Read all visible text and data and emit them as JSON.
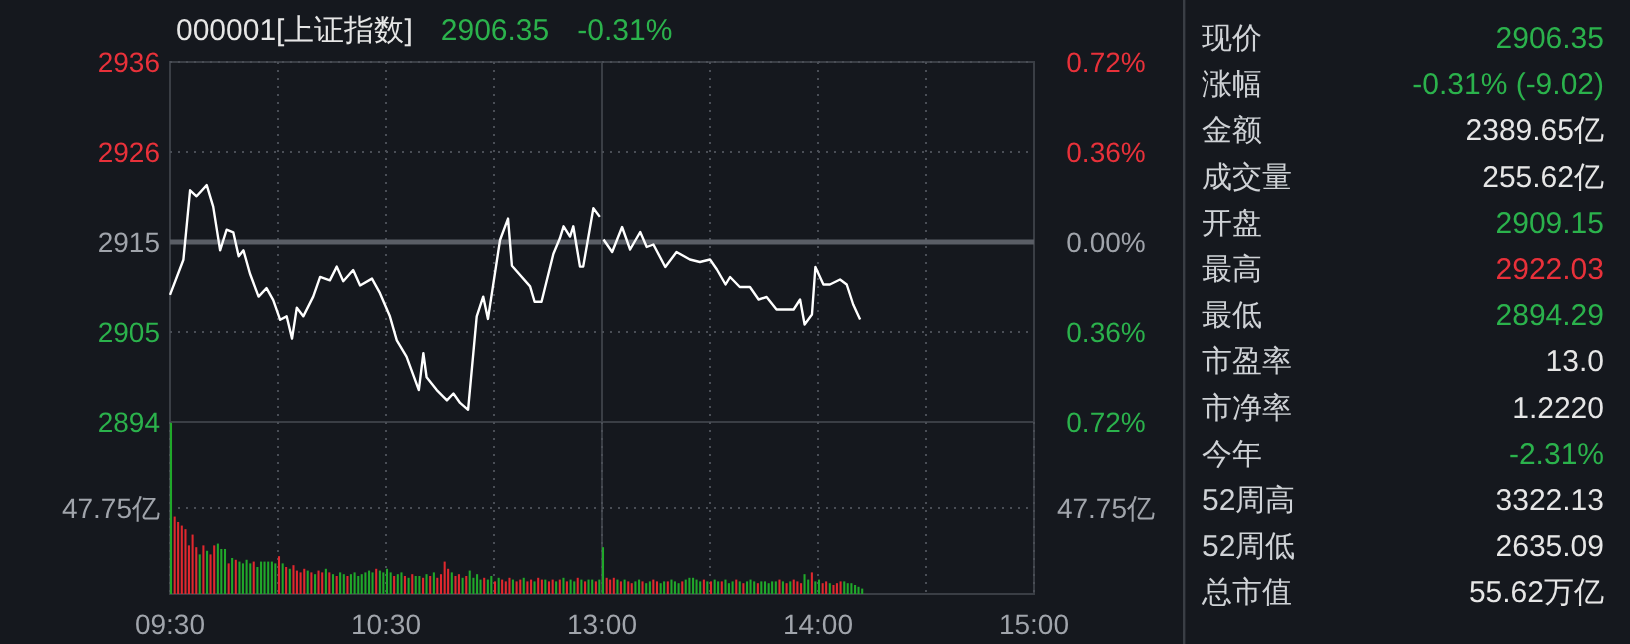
{
  "chart_data": [
    {
      "type": "line",
      "title": "000001[上证指数]",
      "annotations": [
        "2906.35",
        "-0.31%"
      ],
      "x": [
        9.5,
        9.562,
        9.593,
        9.623,
        9.67,
        9.7,
        9.732,
        9.762,
        9.793,
        9.818,
        9.84,
        9.87,
        9.91,
        9.947,
        9.978,
        10.01,
        10.04,
        10.065,
        10.087,
        10.117,
        10.163,
        10.195,
        10.24,
        10.272,
        10.302,
        10.348,
        10.38,
        10.435,
        10.472,
        10.518,
        10.55,
        10.595,
        10.652,
        10.673,
        10.688,
        10.735,
        10.782,
        10.812,
        10.843,
        10.88,
        10.92,
        10.95,
        10.972,
        11.028,
        11.065,
        11.083,
        11.167,
        11.188,
        11.22,
        11.275,
        11.305,
        11.322,
        11.352,
        11.367,
        11.398,
        11.413,
        11.46,
        11.49
      ],
      "series": [
        {
          "color": "#ffffff",
          "values": [
            2909.2,
            2913.3,
            2921.4,
            2920.7,
            2922.0,
            2919.5,
            2914.4,
            2916.8,
            2916.5,
            2913.7,
            2914.4,
            2911.7,
            2909.0,
            2910.0,
            2908.6,
            2906.3,
            2906.7,
            2904.1,
            2907.7,
            2906.7,
            2909.0,
            2911.3,
            2910.9,
            2912.5,
            2910.8,
            2912.1,
            2910.3,
            2911.1,
            2909.4,
            2906.7,
            2903.9,
            2902.0,
            2898.1,
            2902.4,
            2899.6,
            2898.1,
            2896.9,
            2897.7,
            2896.6,
            2895.8,
            2906.7,
            2909.0,
            2906.4,
            2915.6,
            2918.1,
            2912.6,
            2910.2,
            2908.4,
            2908.4,
            2914.0,
            2915.8,
            2917.2,
            2916.0,
            2917.2,
            2912.5,
            2912.5,
            2919.3,
            2918.3
          ]
        }
      ],
      "xlim": [
        9.5,
        11.5
      ],
      "xticks": [
        {
          "value": 10,
          "label": null
        },
        {
          "value": 10.5,
          "label": null
        },
        {
          "value": 11,
          "label": null
        }
      ],
      "ylim": [
        2894.38,
        2936.36
      ],
      "yticks": [
        {
          "value": 2894.38,
          "label": "2894"
        },
        {
          "value": 2904.88,
          "label": "2905"
        },
        {
          "value": 2915.37,
          "label": "2915"
        },
        {
          "value": 2925.87,
          "label": "2926"
        },
        {
          "value": 2936.36,
          "label": "2936"
        }
      ],
      "ref_lines": [
        {
          "axis": "y",
          "value": 2915.37
        }
      ],
      "grid": true,
      "tick_labels": "y",
      "marker": "none"
    },
    {
      "type": "line",
      "x": [
        13.007,
        13.047,
        13.093,
        13.13,
        13.177,
        13.207,
        13.238,
        13.293,
        13.345,
        13.407,
        13.453,
        13.5,
        13.532,
        13.572,
        13.593,
        13.638,
        13.685,
        13.725,
        13.762,
        13.808,
        13.887,
        13.917,
        13.938,
        13.972,
        13.988,
        14.025,
        14.055,
        14.102,
        14.133,
        14.163,
        14.195
      ],
      "series": [
        {
          "color": "#ffffff",
          "axis": "y2",
          "values": [
            0.01,
            -0.04,
            0.06,
            -0.03,
            0.04,
            -0.02,
            -0.01,
            -0.1,
            -0.04,
            -0.07,
            -0.08,
            -0.07,
            -0.11,
            -0.17,
            -0.14,
            -0.18,
            -0.18,
            -0.23,
            -0.22,
            -0.27,
            -0.27,
            -0.23,
            -0.33,
            -0.29,
            -0.1,
            -0.17,
            -0.17,
            -0.15,
            -0.17,
            -0.25,
            -0.31
          ]
        }
      ],
      "xlim": [
        13,
        15
      ],
      "xticks": [
        {
          "value": 13.5,
          "label": null
        },
        {
          "value": 14,
          "label": null
        },
        {
          "value": 14.5,
          "label": null
        }
      ],
      "y2lim": [
        -0.72,
        0.72
      ],
      "y2ticks": [
        {
          "value": -0.72,
          "label": "0.72%"
        },
        {
          "value": -0.36,
          "label": "0.36%"
        },
        {
          "value": 0,
          "label": "0.00%"
        },
        {
          "value": 0.36,
          "label": "0.36%"
        },
        {
          "value": 0.72,
          "label": "0.72%"
        }
      ],
      "ref_lines": [
        {
          "axis": "y2",
          "value": 0
        }
      ],
      "grid": true,
      "tick_labels": "y",
      "marker": "none"
    },
    {
      "type": "bar",
      "x": [
        9.5,
        9.517,
        9.533,
        9.55,
        9.567,
        9.583,
        9.6,
        9.617,
        9.633,
        9.65,
        9.667,
        9.683,
        9.7,
        9.717,
        9.733,
        9.75,
        9.767,
        9.783,
        9.8,
        9.817,
        9.833,
        9.85,
        9.867,
        9.883,
        9.9,
        9.917,
        9.933,
        9.95,
        9.967,
        9.983,
        10,
        10.017,
        10.033,
        10.05,
        10.067,
        10.083,
        10.1,
        10.117,
        10.133,
        10.15,
        10.167,
        10.183,
        10.2,
        10.217,
        10.233,
        10.25,
        10.267,
        10.283,
        10.3,
        10.317,
        10.333,
        10.35,
        10.367,
        10.383,
        10.4,
        10.417,
        10.433,
        10.45,
        10.467,
        10.483,
        10.5,
        10.517,
        10.533,
        10.55,
        10.567,
        10.583,
        10.6,
        10.617,
        10.633,
        10.65,
        10.667,
        10.683,
        10.7,
        10.717,
        10.733,
        10.75,
        10.767,
        10.783,
        10.8,
        10.817,
        10.833,
        10.85,
        10.867,
        10.883,
        10.9,
        10.917,
        10.933,
        10.95,
        10.967,
        10.983,
        11,
        11.017,
        11.033,
        11.05,
        11.067,
        11.083,
        11.1,
        11.117,
        11.133,
        11.15,
        11.167,
        11.183,
        11.2,
        11.217,
        11.233,
        11.25,
        11.267,
        11.283,
        11.3,
        11.317,
        11.333,
        11.35,
        11.367,
        11.383,
        11.4,
        11.417,
        11.433,
        11.45,
        11.467,
        11.483
      ],
      "values": [
        95,
        43,
        40,
        38,
        36,
        27,
        33,
        26,
        22,
        27,
        24,
        22,
        27,
        28,
        25,
        25,
        17,
        20,
        19,
        18,
        17,
        19,
        17,
        18,
        15,
        18,
        18,
        18,
        18,
        17,
        21,
        17,
        15,
        14,
        16,
        13,
        12,
        14,
        13,
        12,
        11,
        13,
        12,
        14,
        12,
        11,
        10,
        12,
        11,
        10,
        11,
        12,
        10,
        11,
        12,
        13,
        12,
        14,
        13,
        12,
        14,
        12,
        10,
        11,
        12,
        10,
        9,
        11,
        10,
        10,
        9,
        11,
        10,
        12,
        9,
        11,
        18,
        14,
        12,
        10,
        11,
        9,
        10,
        13,
        9,
        11,
        8,
        9,
        8,
        10,
        7,
        9,
        8,
        7,
        9,
        8,
        7,
        8,
        9,
        7,
        8,
        7,
        9,
        8,
        8,
        7,
        8,
        7,
        8,
        9,
        7,
        8,
        7,
        9,
        8,
        7,
        8,
        8,
        7,
        8
      ],
      "colors": [
        "#20a82a",
        "#e0282e",
        "#e0282e",
        "#e0282e",
        "#e0282e",
        "#e0282e",
        "#e0282e",
        "#e0282e",
        "#20a82a",
        "#e0282e",
        "#20a82a",
        "#e0282e",
        "#e0282e",
        "#20a82a",
        "#20a82a",
        "#20a82a",
        "#e0282e",
        "#20a82a",
        "#e0282e",
        "#20a82a",
        "#20a82a",
        "#20a82a",
        "#20a82a",
        "#e0282e",
        "#20a82a",
        "#20a82a",
        "#20a82a",
        "#20a82a",
        "#20a82a",
        "#20a82a",
        "#e0282e",
        "#20a82a",
        "#e0282e",
        "#20a82a",
        "#e0282e",
        "#e0282e",
        "#e0282e",
        "#e0282e",
        "#20a82a",
        "#e0282e",
        "#20a82a",
        "#e0282e",
        "#e0282e",
        "#20a82a",
        "#e0282e",
        "#20a82a",
        "#e0282e",
        "#20a82a",
        "#20a82a",
        "#e0282e",
        "#20a82a",
        "#20a82a",
        "#20a82a",
        "#20a82a",
        "#20a82a",
        "#20a82a",
        "#20a82a",
        "#e0282e",
        "#20a82a",
        "#20a82a",
        "#20a82a",
        "#20a82a",
        "#e0282e",
        "#20a82a",
        "#20a82a",
        "#e0282e",
        "#20a82a",
        "#e0282e",
        "#20a82a",
        "#20a82a",
        "#e0282e",
        "#20a82a",
        "#e0282e",
        "#20a82a",
        "#e0282e",
        "#e0282e",
        "#e0282e",
        "#e0282e",
        "#20a82a",
        "#e0282e",
        "#e0282e",
        "#20a82a",
        "#e0282e",
        "#20a82a",
        "#20a82a",
        "#20a82a",
        "#20a82a",
        "#e0282e",
        "#20a82a",
        "#20a82a",
        "#e0282e",
        "#20a82a",
        "#e0282e",
        "#e0282e",
        "#e0282e",
        "#20a82a",
        "#e0282e",
        "#e0282e",
        "#20a82a",
        "#e0282e",
        "#e0282e",
        "#20a82a",
        "#e0282e",
        "#e0282e",
        "#20a82a",
        "#e0282e",
        "#e0282e",
        "#20a82a",
        "#e0282e",
        "#20a82a",
        "#e0282e",
        "#20a82a",
        "#20a82a",
        "#e0282e",
        "#20a82a",
        "#e0282e",
        "#20a82a",
        "#20a82a",
        "#e0282e",
        "#20a82a"
      ],
      "xlim": [
        9.5,
        11.5
      ],
      "xticks": [
        {
          "value": 9.5,
          "label": "09:30"
        },
        {
          "value": 10,
          "label": null
        },
        {
          "value": 10.5,
          "label": "10:30"
        },
        {
          "value": 11,
          "label": null
        }
      ],
      "ylim": [
        0,
        95.5
      ],
      "yticks": [
        {
          "value": 47.75,
          "label": "47.75亿"
        }
      ],
      "grid": true
    },
    {
      "type": "bar",
      "x": [
        13,
        13.017,
        13.033,
        13.05,
        13.067,
        13.083,
        13.1,
        13.117,
        13.133,
        13.15,
        13.167,
        13.183,
        13.2,
        13.217,
        13.233,
        13.25,
        13.267,
        13.283,
        13.3,
        13.317,
        13.333,
        13.35,
        13.367,
        13.383,
        13.4,
        13.417,
        13.433,
        13.45,
        13.467,
        13.483,
        13.5,
        13.517,
        13.533,
        13.55,
        13.567,
        13.583,
        13.6,
        13.617,
        13.633,
        13.65,
        13.667,
        13.683,
        13.7,
        13.717,
        13.733,
        13.75,
        13.767,
        13.783,
        13.8,
        13.817,
        13.833,
        13.85,
        13.867,
        13.883,
        13.9,
        13.917,
        13.933,
        13.95,
        13.967,
        13.983,
        14,
        14.017,
        14.033,
        14.05,
        14.067,
        14.083,
        14.1,
        14.117,
        14.133,
        14.15,
        14.167,
        14.183,
        14.2
      ],
      "values": [
        26,
        9,
        8,
        9,
        8,
        7,
        8,
        7,
        6,
        7,
        8,
        7,
        6,
        7,
        8,
        7,
        6,
        7,
        7,
        8,
        7,
        6,
        7,
        8,
        9,
        9,
        8,
        7,
        8,
        7,
        7,
        8,
        7,
        7,
        8,
        6,
        7,
        8,
        7,
        6,
        7,
        8,
        7,
        6,
        7,
        7,
        6,
        7,
        7,
        8,
        7,
        6,
        7,
        8,
        7,
        6,
        11,
        8,
        12,
        7,
        8,
        6,
        7,
        6,
        5,
        6,
        7,
        7,
        6,
        6,
        5,
        4,
        3
      ],
      "colors": [
        "#20a82a",
        "#e0282e",
        "#e0282e",
        "#e0282e",
        "#20a82a",
        "#e0282e",
        "#20a82a",
        "#e0282e",
        "#e0282e",
        "#20a82a",
        "#20a82a",
        "#e0282e",
        "#20a82a",
        "#20a82a",
        "#e0282e",
        "#e0282e",
        "#20a82a",
        "#20a82a",
        "#e0282e",
        "#20a82a",
        "#20a82a",
        "#20a82a",
        "#e0282e",
        "#20a82a",
        "#20a82a",
        "#20a82a",
        "#20a82a",
        "#20a82a",
        "#e0282e",
        "#20a82a",
        "#e0282e",
        "#20a82a",
        "#20a82a",
        "#e0282e",
        "#20a82a",
        "#20a82a",
        "#20a82a",
        "#e0282e",
        "#20a82a",
        "#e0282e",
        "#20a82a",
        "#20a82a",
        "#20a82a",
        "#e0282e",
        "#20a82a",
        "#20a82a",
        "#20a82a",
        "#20a82a",
        "#20a82a",
        "#e0282e",
        "#20a82a",
        "#e0282e",
        "#20a82a",
        "#e0282e",
        "#e0282e",
        "#e0282e",
        "#20a82a",
        "#20a82a",
        "#e0282e",
        "#20a82a",
        "#20a82a",
        "#e0282e",
        "#e0282e",
        "#20a82a",
        "#e0282e",
        "#e0282e",
        "#e0282e",
        "#20a82a",
        "#20a82a",
        "#20a82a",
        "#20a82a",
        "#20a82a",
        "#20a82a"
      ],
      "xlim": [
        13,
        15
      ],
      "xticks": [
        {
          "value": 13,
          "label": "13:00"
        },
        {
          "value": 13.5,
          "label": null
        },
        {
          "value": 14,
          "label": "14:00"
        },
        {
          "value": 14.5,
          "label": null
        },
        {
          "value": 15,
          "label": "15:00"
        }
      ],
      "ylim": [
        0,
        95.5
      ],
      "yticks": [
        {
          "value": 47.75,
          "label": "47.75亿"
        }
      ],
      "grid": true
    },
    {
      "type": "other",
      "categories": [
        "现价",
        "涨幅",
        "金额",
        "成交量",
        "开盘",
        "最高",
        "最低",
        "市盈率",
        "市净率",
        "今年",
        "52周高",
        "52周低",
        "总市值"
      ],
      "value_labels": [
        "2906.35",
        "-0.31% (-9.02)",
        "2389.65亿",
        "255.62亿",
        "2909.15",
        "2922.03",
        "2894.29",
        "13.0",
        "1.2220",
        "-2.31%",
        "3322.13",
        "2635.09",
        "55.62万亿"
      ],
      "colors": [
        "#2bb24c",
        "#2bb24c",
        "#e6e6e6",
        "#e6e6e6",
        "#2bb24c",
        "#e8313a",
        "#2bb24c",
        "#e6e6e6",
        "#e6e6e6",
        "#2bb24c",
        "#e6e6e6",
        "#e6e6e6",
        "#e6e6e6"
      ]
    }
  ]
}
